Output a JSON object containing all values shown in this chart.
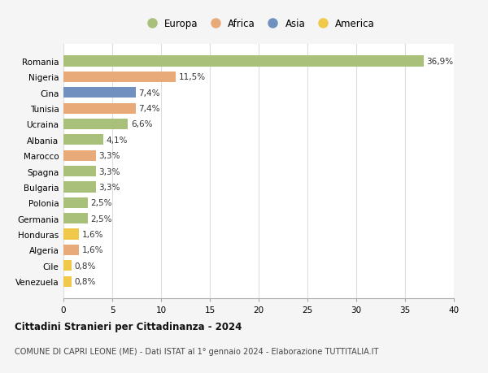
{
  "countries": [
    "Romania",
    "Nigeria",
    "Cina",
    "Tunisia",
    "Ucraina",
    "Albania",
    "Marocco",
    "Spagna",
    "Bulgaria",
    "Polonia",
    "Germania",
    "Honduras",
    "Algeria",
    "Cile",
    "Venezuela"
  ],
  "values": [
    36.9,
    11.5,
    7.4,
    7.4,
    6.6,
    4.1,
    3.3,
    3.3,
    3.3,
    2.5,
    2.5,
    1.6,
    1.6,
    0.8,
    0.8
  ],
  "labels": [
    "36,9%",
    "11,5%",
    "7,4%",
    "7,4%",
    "6,6%",
    "4,1%",
    "3,3%",
    "3,3%",
    "3,3%",
    "2,5%",
    "2,5%",
    "1,6%",
    "1,6%",
    "0,8%",
    "0,8%"
  ],
  "continents": [
    "Europa",
    "Africa",
    "Asia",
    "Africa",
    "Europa",
    "Europa",
    "Africa",
    "Europa",
    "Europa",
    "Europa",
    "Europa",
    "America",
    "Africa",
    "America",
    "America"
  ],
  "colors": {
    "Europa": "#a8c07a",
    "Africa": "#e8aa78",
    "Asia": "#7090c0",
    "America": "#f0c84a"
  },
  "legend_order": [
    "Europa",
    "Africa",
    "Asia",
    "America"
  ],
  "legend_colors": [
    "#a8c07a",
    "#e8aa78",
    "#7090c0",
    "#f0c84a"
  ],
  "xlim": [
    0,
    40
  ],
  "xticks": [
    0,
    5,
    10,
    15,
    20,
    25,
    30,
    35,
    40
  ],
  "title": "Cittadini Stranieri per Cittadinanza - 2024",
  "subtitle": "COMUNE DI CAPRI LEONE (ME) - Dati ISTAT al 1° gennaio 2024 - Elaborazione TUTTITALIA.IT",
  "bg_color": "#f5f5f5",
  "plot_bg_color": "#ffffff",
  "grid_color": "#dddddd",
  "label_fontsize": 7.5,
  "tick_fontsize": 7.5,
  "bar_height": 0.68
}
